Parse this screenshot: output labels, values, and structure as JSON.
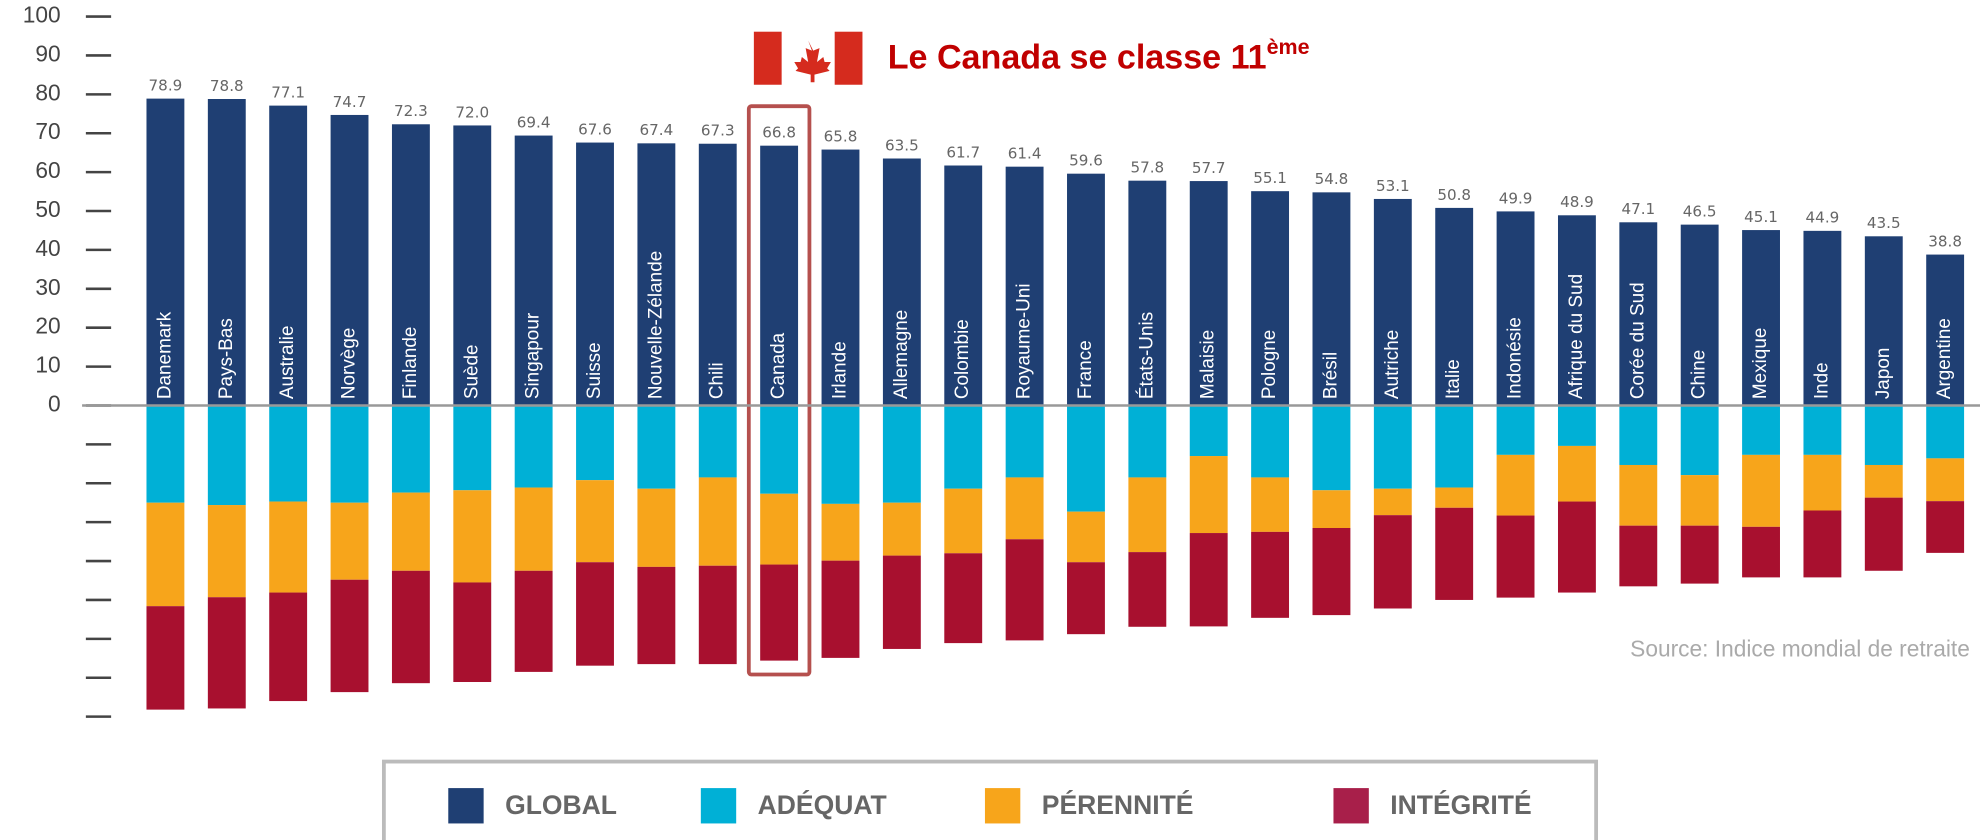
{
  "chart_data": {
    "type": "bar",
    "title": "Le Canada se classe 11",
    "title_superscript": "ème",
    "source": "Source: Indice mondial de retraite",
    "categories": [
      "Danemark",
      "Pays-Bas",
      "Australie",
      "Norvège",
      "Finlande",
      "Suède",
      "Singapour",
      "Suisse",
      "Nouvelle-Zélande",
      "Chili",
      "Canada",
      "Irlande",
      "Allemagne",
      "Colombie",
      "Royaume-Uni",
      "France",
      "États-Unis",
      "Malaisie",
      "Pologne",
      "Brésil",
      "Autriche",
      "Italie",
      "Indonésie",
      "Afrique du Sud",
      "Corée du Sud",
      "Chine",
      "Mexique",
      "Inde",
      "Japon",
      "Argentine"
    ],
    "series": [
      {
        "name": "GLOBAL",
        "color": "#1f3f73",
        "values": [
          78.9,
          78.8,
          77.1,
          74.7,
          72.3,
          72,
          69.4,
          67.6,
          67.4,
          67.3,
          66.8,
          65.8,
          63.5,
          61.7,
          61.4,
          59.6,
          57.8,
          57.7,
          55.1,
          54.8,
          53.1,
          50.8,
          49.9,
          48.9,
          47.1,
          46.5,
          45.1,
          44.9,
          43.5,
          38.8
        ],
        "value_labels": [
          "78.9",
          "78.8",
          "77.1",
          "74.7",
          "72.3",
          "72.0",
          "69.4",
          "67.6",
          "67.4",
          "67.3",
          "66.8",
          "65.8",
          "63.5",
          "61.7",
          "61.4",
          "59.6",
          "57.8",
          "57.7",
          "55.1",
          "54.8",
          "53.1",
          "50.8",
          "49.9",
          "48.9",
          "47.1",
          "46.5",
          "45.1",
          "44.9",
          "43.5",
          "38.8"
        ]
      },
      {
        "name": "ADÉQUAT",
        "color": "#00b0d6",
        "values": [
          25,
          25.6,
          24.7,
          25,
          22.4,
          21.8,
          21.1,
          19.2,
          21.4,
          18.5,
          22.7,
          25.3,
          25,
          21.4,
          18.5,
          27.3,
          18.5,
          13,
          18.5,
          21.8,
          21.4,
          21.1,
          12.7,
          10.4,
          15.3,
          17.9,
          12.7,
          12.7,
          15.3,
          13.6
        ]
      },
      {
        "name": "PÉRENNITÉ",
        "color": "#f7a51b",
        "values": [
          26.6,
          23.7,
          23.4,
          19.8,
          20.1,
          23.7,
          21.4,
          21.1,
          20.1,
          22.7,
          18.2,
          14.6,
          13.6,
          16.6,
          15.9,
          13,
          19.2,
          19.8,
          14,
          9.7,
          6.8,
          5.2,
          15.6,
          14.3,
          15.6,
          13,
          18.5,
          14.3,
          8.4,
          11
        ]
      },
      {
        "name": "INTÉGRITÉ",
        "color": "#a8102f",
        "values": [
          26.6,
          28.6,
          27.9,
          28.9,
          28.9,
          25.6,
          26,
          26.6,
          25,
          25.3,
          24.7,
          25,
          24,
          23.1,
          26,
          18.5,
          19.2,
          24,
          22.1,
          22.4,
          24,
          23.7,
          21.1,
          23.4,
          15.6,
          14.9,
          13,
          17.2,
          18.8,
          13.3
        ]
      }
    ],
    "stack_direction": "down",
    "highlight_index": 10,
    "ylim": [
      -80,
      100
    ],
    "yticks": [
      0,
      10,
      20,
      30,
      40,
      50,
      60,
      70,
      80,
      90,
      100
    ],
    "yticks_unlabeled": [
      -10,
      -20,
      -30,
      -40,
      -50,
      -60,
      -70,
      -80
    ]
  }
}
